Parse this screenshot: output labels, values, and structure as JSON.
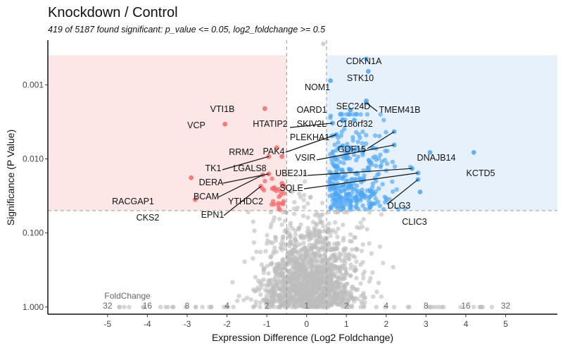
{
  "chart_data": {
    "type": "scatter",
    "title": "Knockdown / Control",
    "subtitle": "419 of 5187 found significant: p_value <= 0.05, log2_foldchange >= 0.5",
    "xlabel": "Expression Difference (Log2 Foldchange)",
    "ylabel": "Significance (P Value)",
    "x_ticks": [
      -5,
      -4,
      -3,
      -2,
      -1,
      0,
      1,
      2,
      3,
      4,
      5
    ],
    "y_ticks": [
      {
        "value": 0.001,
        "label": "0.001"
      },
      {
        "value": 0.01,
        "label": "0.010"
      },
      {
        "value": 0.1,
        "label": "0.100"
      },
      {
        "value": 1,
        "label": "1.000"
      }
    ],
    "y_scale": "log, reversed",
    "xlim": [
      -6.5,
      6.3
    ],
    "ylim": [
      1.25,
      0.00025
    ],
    "thresholds": {
      "p_value": 0.05,
      "log2_foldchange": 0.5
    },
    "foldchange_axis": {
      "title": "FoldChange",
      "labels": [
        "32",
        "16",
        "8",
        "4",
        "2",
        "1",
        "2",
        "4",
        "8",
        "16",
        "32"
      ],
      "log2_positions": [
        -5,
        -4,
        -3,
        -2,
        -1,
        0,
        1,
        2,
        3,
        4,
        5
      ]
    },
    "colors": {
      "down": "#F26B6B",
      "up": "#4DA6F2",
      "ns": "#BDBDBD",
      "down_region": "#FDE6E6",
      "up_region": "#E6F1FC",
      "threshold_line": "#999999"
    },
    "labeled_genes": [
      {
        "name": "CDKN1A",
        "x": 1.5,
        "y": 0.00045,
        "group": "up"
      },
      {
        "name": "STK10",
        "x": 1.55,
        "y": 0.00066,
        "group": "up"
      },
      {
        "name": "NOM1",
        "x": 0.6,
        "y": 0.00088,
        "group": "up"
      },
      {
        "name": "SEC24D",
        "x": 1.5,
        "y": 0.00165,
        "group": "up"
      },
      {
        "name": "TMEM41B",
        "x": 1.5,
        "y": 0.00175,
        "group": "up"
      },
      {
        "name": "OARD1",
        "x": 1.1,
        "y": 0.0022,
        "group": "up"
      },
      {
        "name": "C18orf32",
        "x": 1.25,
        "y": 0.0025,
        "group": "up"
      },
      {
        "name": "SKIV2L",
        "x": 0.85,
        "y": 0.0025,
        "group": "up"
      },
      {
        "name": "HTATIP2",
        "x": 0.65,
        "y": 0.0033,
        "group": "up"
      },
      {
        "name": "PLEKHA1",
        "x": 1.2,
        "y": 0.003,
        "group": "up"
      },
      {
        "name": "GDF15",
        "x": 2.2,
        "y": 0.0043,
        "group": "up"
      },
      {
        "name": "PAK4",
        "x": 0.75,
        "y": 0.0047,
        "group": "up"
      },
      {
        "name": "VSIR",
        "x": 2.2,
        "y": 0.0065,
        "group": "up"
      },
      {
        "name": "DNAJB14",
        "x": 3.1,
        "y": 0.0082,
        "group": "up"
      },
      {
        "name": "KCTD5",
        "x": 4.2,
        "y": 0.0082,
        "group": "up"
      },
      {
        "name": "UBE2J1",
        "x": 2.65,
        "y": 0.0135,
        "group": "up"
      },
      {
        "name": "SQLE",
        "x": 2.8,
        "y": 0.0155,
        "group": "up"
      },
      {
        "name": "DLG3",
        "x": 2.8,
        "y": 0.019,
        "group": "up"
      },
      {
        "name": "CLIC3",
        "x": 2.85,
        "y": 0.028,
        "group": "up"
      },
      {
        "name": "VTI1B",
        "x": -1.05,
        "y": 0.0021,
        "group": "down"
      },
      {
        "name": "VCP",
        "x": -2.05,
        "y": 0.0034,
        "group": "down"
      },
      {
        "name": "RRM2",
        "x": -0.75,
        "y": 0.0071,
        "group": "down"
      },
      {
        "name": "TK1",
        "x": -0.95,
        "y": 0.0093,
        "group": "down"
      },
      {
        "name": "LGALS8",
        "x": -0.62,
        "y": 0.0093,
        "group": "down"
      },
      {
        "name": "DERA",
        "x": -0.95,
        "y": 0.016,
        "group": "down"
      },
      {
        "name": "BCAM",
        "x": -1.1,
        "y": 0.0165,
        "group": "down"
      },
      {
        "name": "YTHDC2",
        "x": -0.62,
        "y": 0.0215,
        "group": "down"
      },
      {
        "name": "EPN1",
        "x": -1.15,
        "y": 0.0235,
        "group": "down"
      },
      {
        "name": "RACGAP1",
        "x": -2.9,
        "y": 0.018,
        "group": "down"
      },
      {
        "name": "CKS2",
        "x": -2.8,
        "y": 0.0355,
        "group": "down"
      }
    ]
  }
}
